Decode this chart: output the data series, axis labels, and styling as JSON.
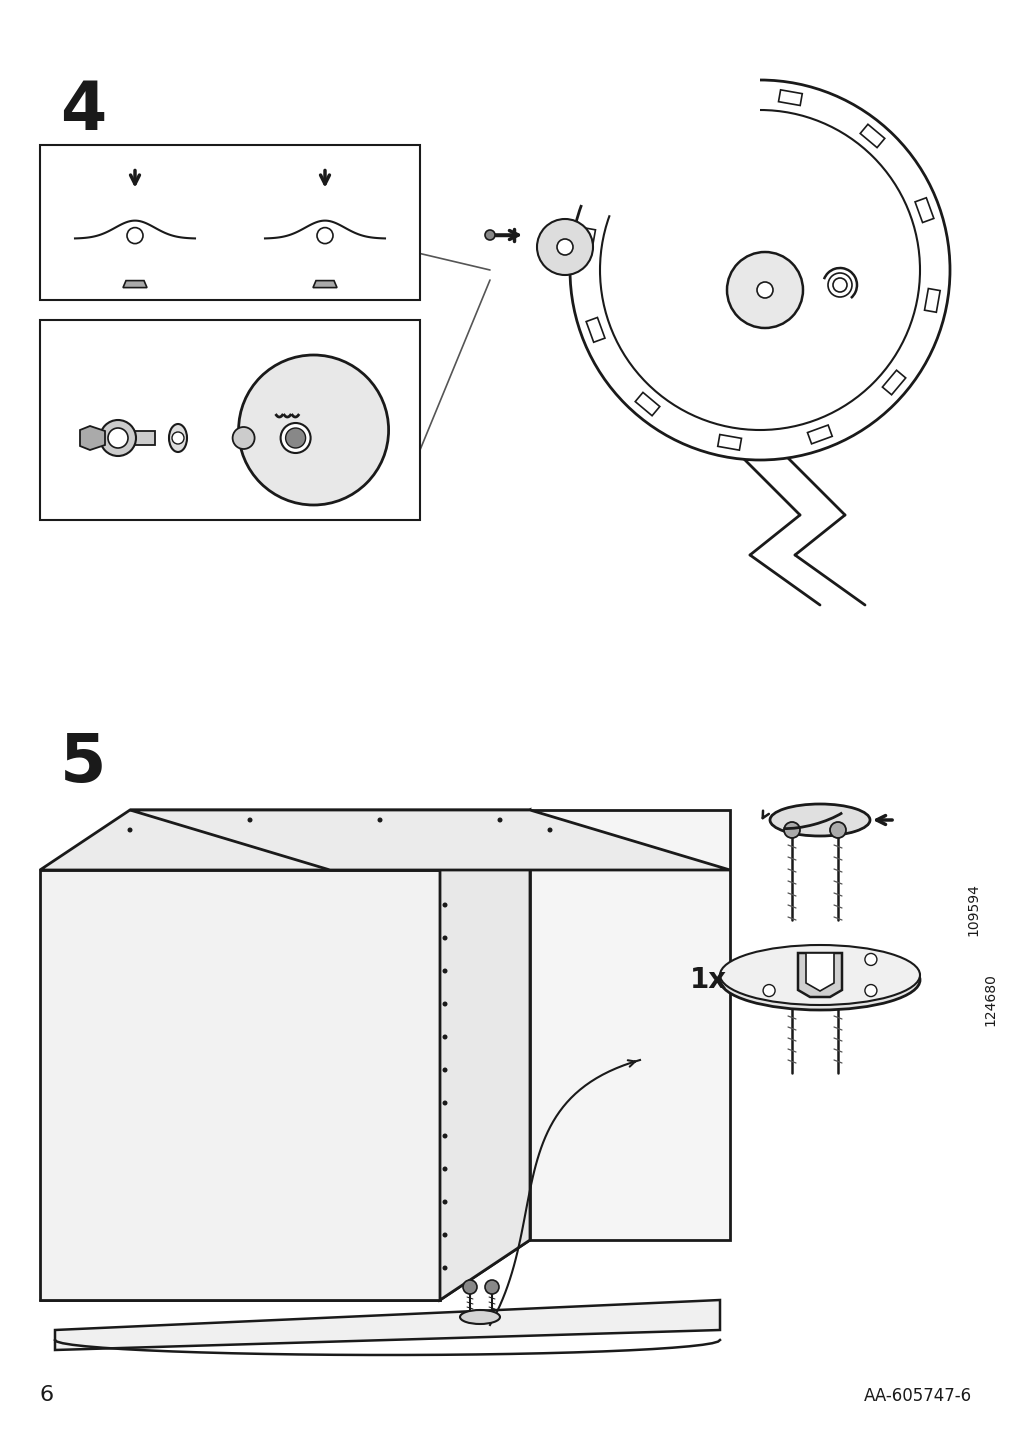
{
  "page_number": "6",
  "doc_number": "AA-605747-6",
  "step4_label": "4",
  "step5_label": "5",
  "bg_color": "#ffffff",
  "line_color": "#1a1a1a",
  "step_label_fontsize": 48,
  "page_num_fontsize": 16,
  "doc_num_fontsize": 12,
  "label_1x": "1x",
  "part_number_1": "109594",
  "part_number_2": "124680"
}
